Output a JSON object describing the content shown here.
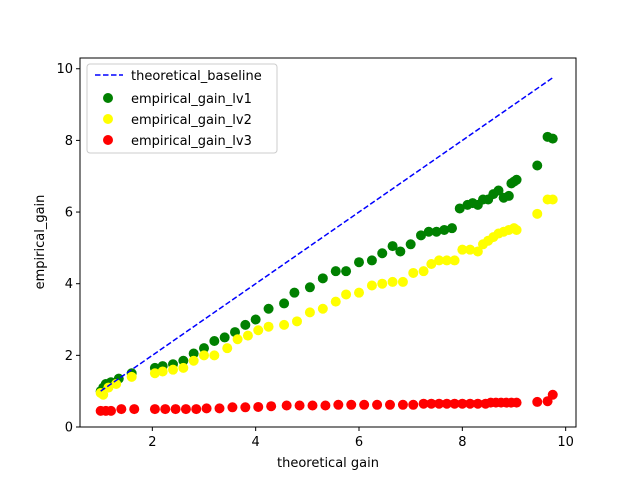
{
  "chart_data": {
    "type": "scatter",
    "title": "",
    "xlabel": "theoretical gain",
    "ylabel": "empirical_gain",
    "xlim": [
      0.6,
      10.2
    ],
    "ylim": [
      0,
      10.3
    ],
    "xticks": [
      2,
      4,
      6,
      8,
      10
    ],
    "xtick_labels": [
      "2",
      "4",
      "6",
      "8",
      "10"
    ],
    "yticks": [
      0,
      2,
      4,
      6,
      8,
      10
    ],
    "ytick_labels": [
      "0",
      "2",
      "4",
      "6",
      "8",
      "10"
    ],
    "grid": false,
    "legend_placement": "top-left",
    "legend": {
      "baseline": "theoretical_baseline",
      "lv1": "empirical_gain_lv1",
      "lv2": "empirical_gain_lv2",
      "lv3": "empirical_gain_lv3"
    },
    "baseline": {
      "name": "theoretical_baseline",
      "color": "#0000ff",
      "style": "dashed",
      "x": [
        1.0,
        9.75
      ],
      "y": [
        1.0,
        9.75
      ]
    },
    "series": [
      {
        "name": "empirical_gain_lv1",
        "color": "#008000",
        "x": [
          1.0,
          1.05,
          1.1,
          1.2,
          1.35,
          1.6,
          2.05,
          2.2,
          2.4,
          2.6,
          2.8,
          3.0,
          3.2,
          3.4,
          3.6,
          3.8,
          4.0,
          4.25,
          4.55,
          4.75,
          5.05,
          5.3,
          5.55,
          5.75,
          6.0,
          6.25,
          6.45,
          6.65,
          6.8,
          7.0,
          7.2,
          7.35,
          7.5,
          7.65,
          7.8,
          7.95,
          8.1,
          8.2,
          8.3,
          8.4,
          8.5,
          8.6,
          8.7,
          8.8,
          8.9,
          8.95,
          9.0,
          9.05,
          9.45,
          9.65,
          9.75
        ],
        "y": [
          1.0,
          1.1,
          1.2,
          1.25,
          1.35,
          1.5,
          1.65,
          1.7,
          1.75,
          1.85,
          2.05,
          2.2,
          2.4,
          2.5,
          2.65,
          2.85,
          3.0,
          3.3,
          3.45,
          3.75,
          3.9,
          4.15,
          4.35,
          4.35,
          4.6,
          4.65,
          4.85,
          5.05,
          4.9,
          5.1,
          5.35,
          5.45,
          5.45,
          5.5,
          5.55,
          6.1,
          6.2,
          6.25,
          6.2,
          6.35,
          6.35,
          6.5,
          6.6,
          6.4,
          6.45,
          6.8,
          6.85,
          6.9,
          7.3,
          8.1,
          8.05
        ]
      },
      {
        "name": "empirical_gain_lv2",
        "color": "#ffff00",
        "x": [
          1.0,
          1.05,
          1.15,
          1.3,
          1.6,
          2.05,
          2.2,
          2.4,
          2.6,
          2.8,
          3.0,
          3.2,
          3.45,
          3.65,
          3.85,
          4.05,
          4.25,
          4.55,
          4.8,
          5.05,
          5.3,
          5.55,
          5.75,
          6.0,
          6.25,
          6.45,
          6.65,
          6.85,
          7.05,
          7.25,
          7.4,
          7.55,
          7.7,
          7.85,
          8.0,
          8.15,
          8.3,
          8.4,
          8.5,
          8.6,
          8.7,
          8.8,
          8.9,
          9.0,
          9.05,
          9.45,
          9.65,
          9.75
        ],
        "y": [
          0.95,
          0.9,
          1.1,
          1.2,
          1.4,
          1.5,
          1.55,
          1.6,
          1.65,
          1.85,
          2.0,
          2.0,
          2.2,
          2.45,
          2.55,
          2.7,
          2.8,
          2.85,
          2.95,
          3.2,
          3.3,
          3.5,
          3.7,
          3.75,
          3.95,
          4.0,
          4.05,
          4.05,
          4.3,
          4.35,
          4.55,
          4.65,
          4.65,
          4.65,
          4.95,
          4.95,
          4.9,
          5.1,
          5.2,
          5.3,
          5.4,
          5.45,
          5.5,
          5.55,
          5.5,
          5.95,
          6.35,
          6.35
        ]
      },
      {
        "name": "empirical_gain_lv3",
        "color": "#ff0000",
        "x": [
          1.0,
          1.1,
          1.2,
          1.4,
          1.65,
          2.05,
          2.25,
          2.45,
          2.65,
          2.85,
          3.05,
          3.3,
          3.55,
          3.8,
          4.05,
          4.3,
          4.6,
          4.85,
          5.1,
          5.35,
          5.6,
          5.85,
          6.1,
          6.35,
          6.6,
          6.85,
          7.05,
          7.25,
          7.4,
          7.55,
          7.7,
          7.85,
          8.0,
          8.15,
          8.3,
          8.45,
          8.55,
          8.65,
          8.75,
          8.85,
          8.95,
          9.05,
          9.45,
          9.65,
          9.75
        ],
        "y": [
          0.45,
          0.45,
          0.45,
          0.5,
          0.5,
          0.5,
          0.5,
          0.5,
          0.5,
          0.5,
          0.52,
          0.52,
          0.55,
          0.55,
          0.56,
          0.58,
          0.6,
          0.6,
          0.6,
          0.6,
          0.62,
          0.62,
          0.62,
          0.62,
          0.62,
          0.62,
          0.62,
          0.65,
          0.65,
          0.65,
          0.65,
          0.65,
          0.65,
          0.65,
          0.65,
          0.65,
          0.68,
          0.68,
          0.68,
          0.68,
          0.68,
          0.68,
          0.7,
          0.72,
          0.9
        ]
      }
    ]
  }
}
